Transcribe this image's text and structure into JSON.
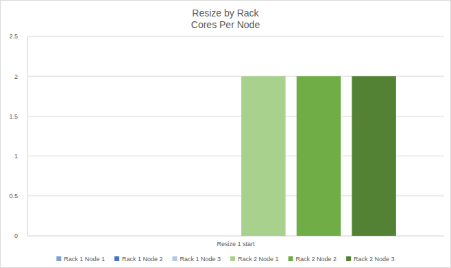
{
  "chart_data": {
    "type": "bar",
    "title": "Resize by Rack",
    "subtitle": "Cores Per Node",
    "categories": [
      "Resize 1 start"
    ],
    "series": [
      {
        "name": "Rack 1 Node 1",
        "color": "#7ca1d3",
        "values": [
          0
        ]
      },
      {
        "name": "Rack 1 Node 2",
        "color": "#4472c4",
        "values": [
          0
        ]
      },
      {
        "name": "Rack 1 Node 3",
        "color": "#b4c7e7",
        "values": [
          0
        ]
      },
      {
        "name": "Rack 2 Node 1",
        "color": "#a9d18e",
        "values": [
          2
        ]
      },
      {
        "name": "Rack 2 Node 2",
        "color": "#70ad47",
        "values": [
          2
        ]
      },
      {
        "name": "Rack 2 Node 3",
        "color": "#548235",
        "values": [
          2
        ]
      }
    ],
    "ylim": [
      0,
      2.5
    ],
    "yticks": [
      0,
      0.5,
      1,
      1.5,
      2,
      2.5
    ],
    "grid": true,
    "legend": "bottom"
  }
}
